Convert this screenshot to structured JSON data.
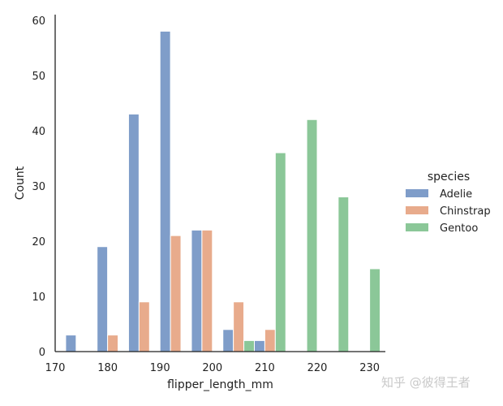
{
  "chart_data": {
    "type": "bar",
    "xlabel": "flipper_length_mm",
    "ylabel": "Count",
    "xlim": [
      170,
      233
    ],
    "ylim": [
      0,
      61
    ],
    "xticks": [
      "170",
      "180",
      "190",
      "200",
      "210",
      "220",
      "230"
    ],
    "yticks": [
      "0",
      "10",
      "20",
      "30",
      "40",
      "50",
      "60"
    ],
    "grid": false,
    "legend": {
      "title": "species",
      "placement": "right"
    },
    "bin_edges": [
      172,
      178,
      184,
      190,
      196,
      202,
      208,
      214,
      220,
      226,
      232
    ],
    "series": [
      {
        "name": "Adelie",
        "color": "#5b81ba",
        "values": [
          3,
          19,
          43,
          58,
          22,
          4,
          2,
          0,
          0,
          0
        ]
      },
      {
        "name": "Chinstrap",
        "color": "#e1946b",
        "values": [
          0,
          3,
          9,
          21,
          22,
          9,
          4,
          0,
          0,
          0
        ]
      },
      {
        "name": "Gentoo",
        "color": "#6ab77b",
        "values": [
          0,
          0,
          0,
          0,
          0,
          2,
          36,
          42,
          28,
          15
        ]
      }
    ]
  },
  "watermark": "知乎 @彼得王者"
}
